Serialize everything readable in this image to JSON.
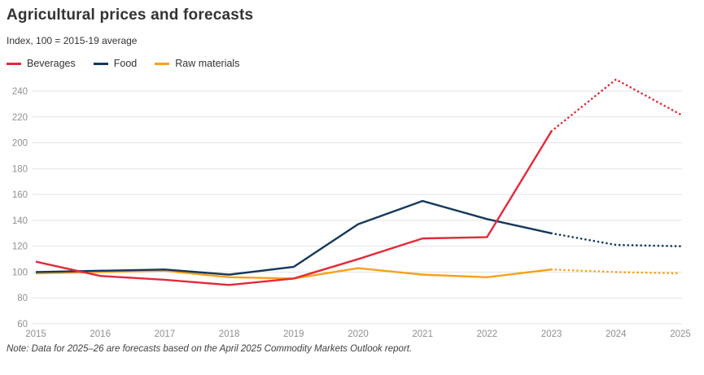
{
  "header": {
    "title": "Agricultural prices and forecasts",
    "subtitle": "Index, 100 = 2015-19 average"
  },
  "note": "Note: Data for 2025–26 are forecasts based on the April 2025 Commodity Markets Outlook report.",
  "colors": {
    "beverages": "#e4293b",
    "food": "#15395e",
    "raw_materials": "#f9a11b",
    "gridline": "#e3e3e3",
    "tick_label": "#909090",
    "title_text": "#333333",
    "background": "#ffffff"
  },
  "chart_data": {
    "type": "line",
    "title": "Agricultural prices and forecasts",
    "subtitle": "Index, 100 = 2015-19 average",
    "x": [
      "2015",
      "2016",
      "2017",
      "2018",
      "2019",
      "2020",
      "2021",
      "2022",
      "2023",
      "2024",
      "2025"
    ],
    "series": [
      {
        "name": "Beverages",
        "color": "#e4293b",
        "values": [
          108,
          97,
          94,
          90,
          95,
          110,
          126,
          127,
          209,
          249,
          222
        ],
        "forecast_from_index": 8
      },
      {
        "name": "Food",
        "color": "#15395e",
        "values": [
          100,
          101,
          102,
          98,
          104,
          137,
          155,
          141,
          130,
          121,
          120
        ],
        "forecast_from_index": 8
      },
      {
        "name": "Raw materials",
        "color": "#f9a11b",
        "values": [
          99,
          100,
          101,
          96,
          95,
          103,
          98,
          96,
          102,
          100,
          99
        ],
        "forecast_from_index": 8
      }
    ],
    "ylim": [
      60,
      250
    ],
    "yticks": [
      60,
      80,
      100,
      120,
      140,
      160,
      180,
      200,
      220,
      240
    ],
    "grid": true,
    "legend_position": "top-left",
    "forecast_style": "dotted",
    "xlabel": "",
    "ylabel": ""
  }
}
